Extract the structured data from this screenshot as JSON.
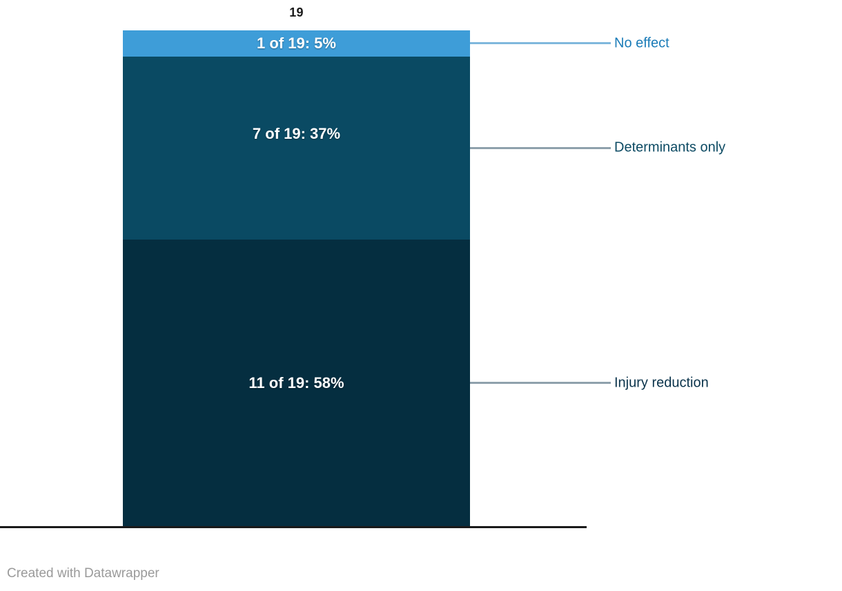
{
  "chart_data": {
    "type": "bar",
    "stacked": true,
    "orientation": "vertical",
    "total": 19,
    "total_label": "19",
    "grid": false,
    "legend_position": "right",
    "axis_color": "#1A1A1A",
    "segments": [
      {
        "label": "No effect",
        "value": 1,
        "of_total": 19,
        "percent": 5,
        "bar_label": "1 of 19: 5%",
        "color": "#3E9DD8",
        "label_color": "#1B7CB8",
        "connector_color": "#7FB8DD"
      },
      {
        "label": "Determinants only",
        "value": 7,
        "of_total": 19,
        "percent": 37,
        "bar_label": "7 of 19: 37%",
        "color": "#0A4A63",
        "label_color": "#0C4A63",
        "connector_color": "#8FA1AC"
      },
      {
        "label": "Injury reduction",
        "value": 11,
        "of_total": 19,
        "percent": 58,
        "bar_label": "11 of 19: 58%",
        "color": "#052E40",
        "label_color": "#0A334B",
        "connector_color": "#8FA1AC"
      }
    ]
  },
  "footer": {
    "attribution": "Created with Datawrapper",
    "color": "#9A9A9A"
  }
}
